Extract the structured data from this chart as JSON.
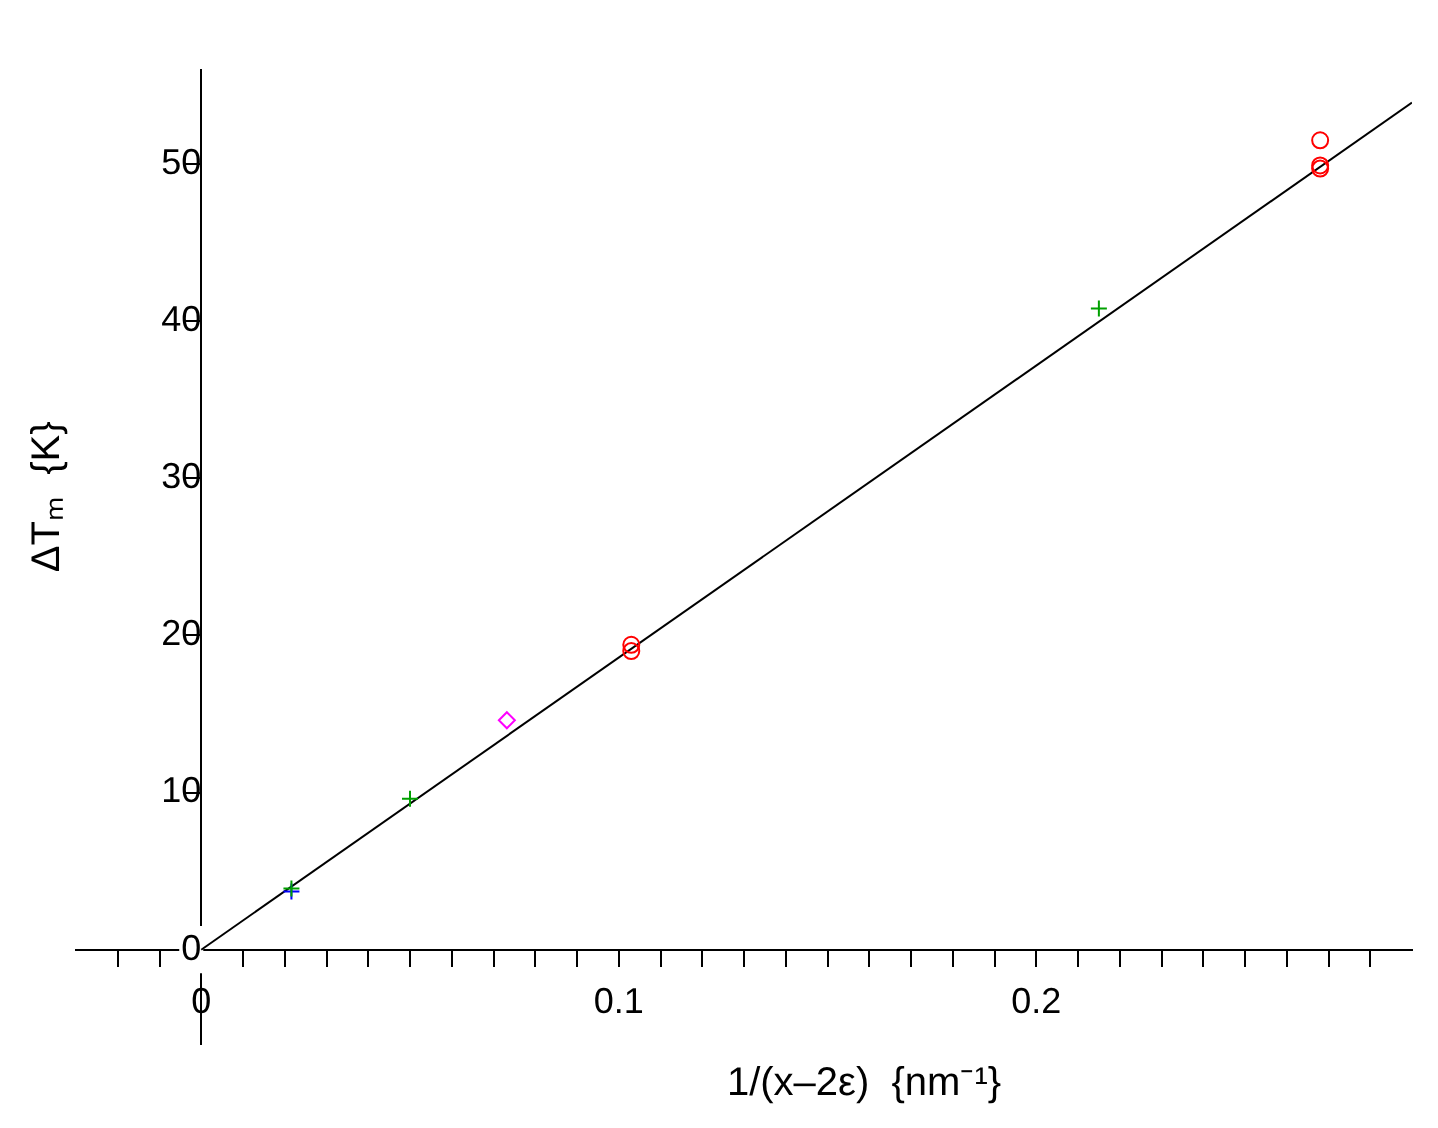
{
  "chart_data": {
    "type": "scatter",
    "xlabel": "1/(x–2ε)  {nm⁻¹}",
    "ylabel": "ΔTₘ  {K}",
    "xlim": [
      -0.03,
      0.29
    ],
    "ylim": [
      -6,
      56
    ],
    "xticks": [
      {
        "value": -0.02,
        "label": null
      },
      {
        "value": -0.01,
        "label": null
      },
      0,
      {
        "value": 0.01,
        "label": null
      },
      {
        "value": 0.02,
        "label": null
      },
      {
        "value": 0.03,
        "label": null
      },
      {
        "value": 0.04,
        "label": null
      },
      {
        "value": 0.05,
        "label": null
      },
      {
        "value": 0.06,
        "label": null
      },
      {
        "value": 0.07,
        "label": null
      },
      {
        "value": 0.08,
        "label": null
      },
      {
        "value": 0.09,
        "label": null
      },
      0.1,
      {
        "value": 0.11,
        "label": null
      },
      {
        "value": 0.12,
        "label": null
      },
      {
        "value": 0.13,
        "label": null
      },
      {
        "value": 0.14,
        "label": null
      },
      {
        "value": 0.15,
        "label": null
      },
      {
        "value": 0.16,
        "label": null
      },
      {
        "value": 0.17,
        "label": null
      },
      {
        "value": 0.18,
        "label": null
      },
      {
        "value": 0.19,
        "label": null
      },
      0.2,
      {
        "value": 0.21,
        "label": null
      },
      {
        "value": 0.22,
        "label": null
      },
      {
        "value": 0.23,
        "label": null
      },
      {
        "value": 0.24,
        "label": null
      },
      {
        "value": 0.25,
        "label": null
      },
      {
        "value": 0.26,
        "label": null
      },
      {
        "value": 0.27,
        "label": null
      },
      {
        "value": 0.28,
        "label": null
      }
    ],
    "yticks": [
      0,
      10,
      20,
      30,
      40,
      50
    ],
    "grid": false,
    "legend": false,
    "series": [
      {
        "color": "#00a000",
        "marker": "cross",
        "x": [
          0.0216,
          0.05,
          0.215
        ],
        "values": [
          3.9,
          9.6,
          40.8
        ]
      },
      {
        "color": "#0000ff",
        "marker": "cross",
        "x": [
          0.0216
        ],
        "values": [
          3.7
        ]
      },
      {
        "color": "#ff0000",
        "marker": "circle",
        "x": [
          0.103,
          0.103,
          0.268,
          0.268,
          0.268
        ],
        "values": [
          19.4,
          19.0,
          51.5,
          49.9,
          49.7
        ]
      },
      {
        "color": "#ff00ff",
        "marker": "diamond",
        "x": [
          0.0732
        ],
        "values": [
          14.6
        ]
      },
      {
        "type": "line",
        "color": "#000000",
        "marker": "none",
        "x": [
          0,
          0.29
        ],
        "values": [
          0,
          53.9
        ]
      }
    ]
  }
}
